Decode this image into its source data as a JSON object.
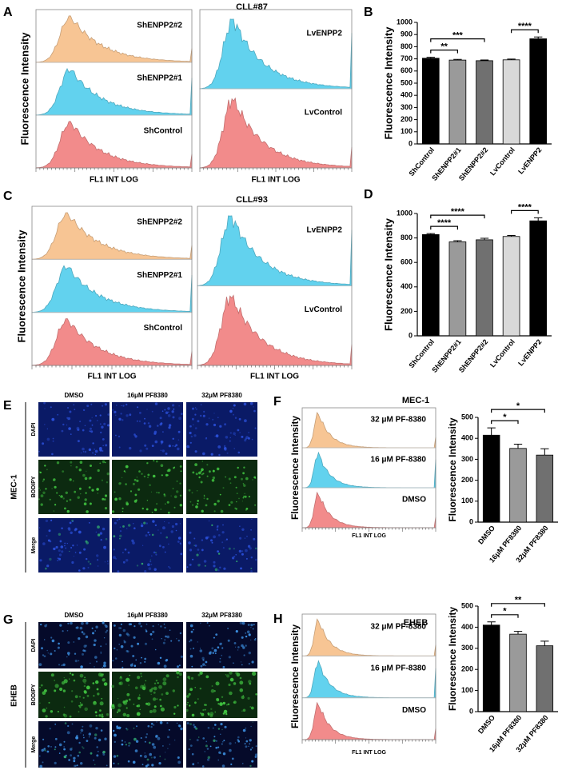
{
  "chart_data": [
    {
      "type": "histogram-overlay",
      "panel": "A",
      "title": "CLL#87",
      "ylabel": "Fluorescence Intensity",
      "xlabel": "FL1 INT LOG",
      "groups": [
        {
          "tracks": [
            {
              "name": "ShENPP2#2",
              "color": "#f7c594"
            },
            {
              "name": "ShENPP2#1",
              "color": "#62d2ee"
            },
            {
              "name": "ShControl",
              "color": "#f28b8b"
            }
          ]
        },
        {
          "tracks": [
            {
              "name": "LvENPP2",
              "color": "#62d2ee"
            },
            {
              "name": "LvControl",
              "color": "#f28b8b"
            }
          ]
        }
      ]
    },
    {
      "type": "bar",
      "panel": "B",
      "ylabel": "Fluorescence Intensity",
      "categories": [
        "ShControl",
        "ShENPP2#1",
        "ShENPP2#2",
        "LvControl",
        "LvENPP2"
      ],
      "values": [
        705,
        690,
        685,
        692,
        865
      ],
      "errors": [
        8,
        6,
        6,
        6,
        15
      ],
      "colors": [
        "#000000",
        "#9a9a9a",
        "#707070",
        "#d9d9d9",
        "#000000"
      ],
      "ylim": [
        0,
        1000
      ],
      "yticks": [
        0,
        100,
        200,
        300,
        400,
        500,
        600,
        700,
        800,
        900,
        1000
      ],
      "comparisons": [
        {
          "pair": [
            "ShControl",
            "ShENPP2#1"
          ],
          "label": "**"
        },
        {
          "pair": [
            "ShControl",
            "ShENPP2#2"
          ],
          "label": "***"
        },
        {
          "pair": [
            "LvControl",
            "LvENPP2"
          ],
          "label": "****"
        }
      ]
    },
    {
      "type": "histogram-overlay",
      "panel": "C",
      "title": "CLL#93",
      "ylabel": "Fluorescence Intensity",
      "xlabel": "FL1 INT LOG",
      "groups": [
        {
          "tracks": [
            {
              "name": "ShENPP2#2",
              "color": "#f7c594"
            },
            {
              "name": "ShENPP2#1",
              "color": "#62d2ee"
            },
            {
              "name": "ShControl",
              "color": "#f28b8b"
            }
          ]
        },
        {
          "tracks": [
            {
              "name": "LvENPP2",
              "color": "#62d2ee"
            },
            {
              "name": "LvControl",
              "color": "#f28b8b"
            }
          ]
        }
      ]
    },
    {
      "type": "bar",
      "panel": "D",
      "ylabel": "Fluorescence Intensity",
      "categories": [
        "ShControl",
        "ShENPP2#1",
        "ShENPP2#2",
        "LvControl",
        "LvENPP2"
      ],
      "values": [
        828,
        768,
        785,
        812,
        940
      ],
      "errors": [
        8,
        10,
        12,
        8,
        25
      ],
      "colors": [
        "#000000",
        "#9a9a9a",
        "#707070",
        "#d9d9d9",
        "#000000"
      ],
      "ylim": [
        0,
        1000
      ],
      "yticks": [
        0,
        200,
        400,
        600,
        800,
        1000
      ],
      "comparisons": [
        {
          "pair": [
            "ShControl",
            "ShENPP2#1"
          ],
          "label": "****"
        },
        {
          "pair": [
            "ShControl",
            "ShENPP2#2"
          ],
          "label": "****"
        },
        {
          "pair": [
            "LvControl",
            "LvENPP2"
          ],
          "label": "****"
        }
      ]
    },
    {
      "type": "histogram-overlay",
      "panel": "F",
      "title": "MEC-1",
      "ylabel": "Fluorescence Intensity",
      "xlabel": "FL1 INT LOG",
      "groups": [
        {
          "tracks": [
            {
              "name": "32 μM PF-8380",
              "color": "#f7c594"
            },
            {
              "name": "16 μM PF-8380",
              "color": "#62d2ee"
            },
            {
              "name": "DMSO",
              "color": "#f28b8b"
            }
          ]
        }
      ]
    },
    {
      "type": "bar",
      "ylabel": "Fluorescence Intensity",
      "categories": [
        "DMSO",
        "16μM PF8380",
        "32μM PF8380"
      ],
      "values": [
        415,
        352,
        320
      ],
      "errors": [
        35,
        20,
        30
      ],
      "colors": [
        "#000000",
        "#9a9a9a",
        "#707070"
      ],
      "ylim": [
        0,
        500
      ],
      "yticks": [
        0,
        100,
        200,
        300,
        400,
        500
      ],
      "comparisons": [
        {
          "pair": [
            "DMSO",
            "16μM PF8380"
          ],
          "label": "*"
        },
        {
          "pair": [
            "DMSO",
            "32μM PF8380"
          ],
          "label": "*"
        }
      ]
    },
    {
      "type": "histogram-overlay",
      "panel": "H",
      "title": "EHEB",
      "ylabel": "Fluorescence Intensity",
      "xlabel": "FL1 INT LOG",
      "groups": [
        {
          "tracks": [
            {
              "name": "32 μM PF-8380",
              "color": "#f7c594"
            },
            {
              "name": "16 μM PF-8380",
              "color": "#62d2ee"
            },
            {
              "name": "DMSO",
              "color": "#f28b8b"
            }
          ]
        }
      ]
    },
    {
      "type": "bar",
      "ylabel": "Fluorescence Intensity",
      "categories": [
        "DMSO",
        "16μM PF8380",
        "32μM PF8380"
      ],
      "values": [
        410,
        367,
        312
      ],
      "errors": [
        15,
        13,
        22
      ],
      "colors": [
        "#000000",
        "#9a9a9a",
        "#707070"
      ],
      "ylim": [
        0,
        500
      ],
      "yticks": [
        0,
        100,
        200,
        300,
        400,
        500
      ],
      "comparisons": [
        {
          "pair": [
            "DMSO",
            "16μM PF8380"
          ],
          "label": "*"
        },
        {
          "pair": [
            "DMSO",
            "32μM PF8380"
          ],
          "label": "**"
        }
      ]
    }
  ],
  "images": [
    {
      "panel": "E",
      "cell_line": "MEC-1",
      "columns": [
        "DMSO",
        "16μM PF8380",
        "32μM PF8380"
      ],
      "rows": [
        "DAPI",
        "BODIPY",
        "Merge"
      ]
    },
    {
      "panel": "G",
      "cell_line": "EHEB",
      "columns": [
        "DMSO",
        "16μM PF8380",
        "32μM PF8380"
      ],
      "rows": [
        "DAPI",
        "BODIPY",
        "Merge"
      ]
    }
  ]
}
